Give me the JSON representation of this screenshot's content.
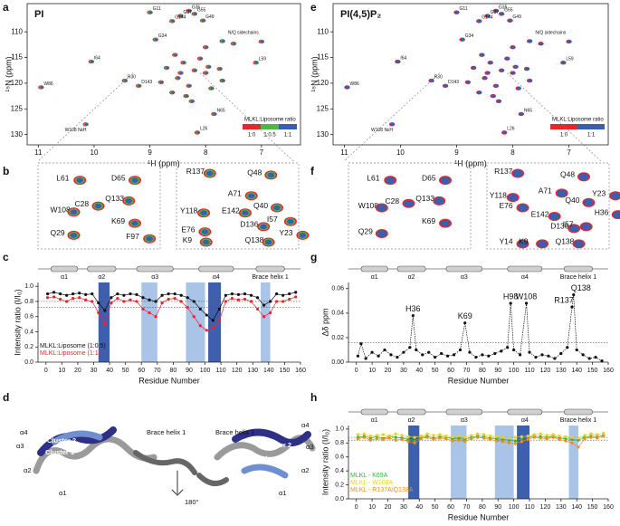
{
  "panel_labels": [
    "a",
    "b",
    "c",
    "d",
    "e",
    "f",
    "g",
    "h"
  ],
  "chart_data": [
    {
      "type": "spectrum",
      "title": "PI",
      "xlabel": "¹H (ppm)",
      "ylabel": "¹⁵N (ppm)",
      "xlim": [
        11.2,
        6.3
      ],
      "ylim": [
        132,
        104.5
      ],
      "xticks": [
        11,
        10,
        9,
        8,
        7
      ],
      "yticks": [
        110,
        115,
        120,
        125,
        130
      ],
      "x": [
        9.0,
        8.3,
        8.45,
        8.6,
        8.05,
        8.2,
        8.9,
        10.05,
        10.95,
        9.45,
        9.2,
        8.15,
        7.85,
        7.1,
        10.15,
        8.4,
        8.2,
        8.0,
        8.5,
        8.3,
        7.9,
        8.7,
        8.1,
        8.6,
        7.7,
        8.35,
        8.0,
        7.7,
        7.0,
        7.5,
        8.8,
        7.95,
        8.55,
        8.25,
        7.75,
        8.45
      ],
      "values": [
        106.2,
        105.9,
        106.9,
        107.9,
        107.8,
        106.5,
        111.5,
        115.8,
        120.8,
        119.5,
        120.5,
        129.6,
        126.0,
        116.0,
        128.0,
        116,
        117.5,
        118,
        119,
        120.5,
        121,
        117,
        115.2,
        121.8,
        119.5,
        122.5,
        113,
        111.8,
        111.9,
        112.3,
        119.8,
        116.8,
        114.5,
        123.5,
        117.2,
        118
      ],
      "value_labels": [
        "G11",
        "G35",
        "G37",
        "G144",
        "G49",
        "G55",
        "G34",
        "I64",
        "W86",
        "R30",
        "D143",
        "L26",
        "N65",
        "L59",
        null,
        null,
        null,
        null,
        null,
        null,
        null,
        null,
        null,
        null,
        null,
        null,
        null,
        null,
        null,
        null,
        null,
        null,
        null,
        null,
        null,
        null
      ],
      "annotations": [
        "W108 NεH",
        "N/Q sidechains"
      ],
      "legend": {
        "title": "MLKL:Liposome ratio",
        "labels": [
          "1:0",
          "1:0.5",
          "1:1"
        ],
        "colors": [
          "#e8262a",
          "#4db848",
          "#3a5fb0"
        ]
      }
    },
    {
      "type": "spectrum",
      "title": "PI(4,5)P₂",
      "xlabel": "¹H (ppm)",
      "ylabel": "¹⁵N (ppm)",
      "xlim": [
        11.2,
        6.3
      ],
      "ylim": [
        132,
        104.5
      ],
      "xticks": [
        11,
        10,
        9,
        8,
        7
      ],
      "yticks": [
        110,
        115,
        120,
        125,
        130
      ],
      "x": [
        9.0,
        8.3,
        8.45,
        8.6,
        8.05,
        8.2,
        8.9,
        10.05,
        10.95,
        9.45,
        9.2,
        8.15,
        7.85,
        7.1,
        10.15,
        8.4,
        8.2,
        8.0,
        8.5,
        8.3,
        7.9,
        8.7,
        8.1,
        8.6,
        7.7,
        8.35,
        8.0,
        7.7,
        7.0,
        7.5,
        8.8,
        7.95,
        8.55,
        8.25,
        7.75,
        8.45
      ],
      "values": [
        106.2,
        105.9,
        106.9,
        107.9,
        107.8,
        106.5,
        111.5,
        115.8,
        120.8,
        119.5,
        120.5,
        129.6,
        126.0,
        116.0,
        128.0,
        116,
        117.5,
        118,
        119,
        120.5,
        121,
        117,
        115.2,
        121.8,
        119.5,
        122.5,
        113,
        111.8,
        111.9,
        112.3,
        119.8,
        116.8,
        114.5,
        123.5,
        117.2,
        118
      ],
      "value_labels": [
        "G11",
        "G35",
        "G37",
        "G144",
        "G49",
        "G55",
        "G34",
        "I64",
        "W86",
        "R30",
        "D143",
        "L26",
        "N65",
        "L59",
        null,
        null,
        null,
        null,
        null,
        null,
        null,
        null,
        null,
        null,
        null,
        null,
        null,
        null,
        null,
        null,
        null,
        null,
        null,
        null,
        null,
        null
      ],
      "annotations": [
        "W108 NεH",
        "N/Q sidechains"
      ],
      "legend": {
        "title": "MLKL:Liposome ratio",
        "labels": [
          "1:0",
          "1:1"
        ],
        "colors": [
          "#e8262a",
          "#3a5fb0"
        ]
      }
    },
    {
      "type": "line",
      "xlabel": "Residue Number",
      "ylabel": "Intensity ratio (I/I₀)",
      "xlim": [
        -5,
        160
      ],
      "ylim": [
        0,
        1.05
      ],
      "xticks": [
        0,
        10,
        20,
        30,
        40,
        50,
        60,
        70,
        80,
        90,
        100,
        110,
        120,
        130,
        140,
        150,
        160
      ],
      "yticks": [
        {
          "value": 0,
          "label": "0.0"
        },
        0.2,
        0.4,
        0.6,
        0.8,
        {
          "value": 1,
          "label": "1.0"
        }
      ],
      "helices": [
        {
          "label": "α1",
          "range": [
            3,
            20
          ]
        },
        {
          "label": "α2",
          "range": [
            26,
            44
          ]
        },
        {
          "label": "α3",
          "range": [
            57,
            80
          ]
        },
        {
          "label": "α4",
          "range": [
            96,
            118
          ]
        },
        {
          "label": "Brace helix 1",
          "range": [
            132,
            150
          ]
        }
      ],
      "regions": [
        {
          "range": [
            33,
            40
          ],
          "color": "#3e5fad"
        },
        {
          "range": [
            60,
            70
          ],
          "color": "#a9c4e6"
        },
        {
          "range": [
            88,
            100
          ],
          "color": "#a9c4e6"
        },
        {
          "range": [
            102,
            110
          ],
          "color": "#3e5fad"
        },
        {
          "range": [
            135,
            141
          ],
          "color": "#a9c4e6"
        }
      ],
      "thresholds": [
        0.8,
        0.72
      ],
      "legend": "lower left",
      "x": [
        1,
        5,
        9,
        13,
        17,
        21,
        25,
        29,
        33,
        37,
        41,
        45,
        49,
        53,
        57,
        61,
        65,
        69,
        73,
        77,
        81,
        85,
        89,
        93,
        97,
        101,
        105,
        109,
        113,
        117,
        121,
        125,
        129,
        133,
        137,
        141,
        145,
        149,
        153,
        157
      ],
      "series": [
        {
          "name": "MLKL:Liposome (1:0.5)",
          "color": "#111111",
          "values": [
            0.9,
            0.92,
            0.9,
            0.88,
            0.9,
            0.91,
            0.89,
            0.9,
            0.78,
            0.68,
            0.85,
            0.9,
            0.88,
            0.9,
            0.89,
            0.85,
            0.82,
            0.8,
            0.88,
            0.9,
            0.9,
            0.88,
            0.85,
            0.8,
            0.7,
            0.62,
            0.55,
            0.7,
            0.88,
            0.9,
            0.89,
            0.9,
            0.88,
            0.85,
            0.75,
            0.8,
            0.9,
            0.88,
            0.9,
            0.92
          ]
        },
        {
          "name": "MLKL:Liposome (1:1)",
          "color": "#e8262a",
          "values": [
            0.85,
            0.86,
            0.83,
            0.8,
            0.84,
            0.85,
            0.82,
            0.8,
            0.65,
            0.5,
            0.78,
            0.84,
            0.8,
            0.82,
            0.8,
            0.7,
            0.65,
            0.6,
            0.78,
            0.83,
            0.84,
            0.8,
            0.72,
            0.6,
            0.48,
            0.42,
            0.45,
            0.55,
            0.8,
            0.84,
            0.82,
            0.83,
            0.8,
            0.7,
            0.6,
            0.65,
            0.8,
            0.8,
            0.83,
            0.86
          ]
        }
      ]
    },
    {
      "type": "line",
      "xlabel": "Residue Number",
      "ylabel": "Δδ ppm",
      "xlim": [
        -5,
        160
      ],
      "ylim": [
        0,
        0.065
      ],
      "xticks": [
        0,
        10,
        20,
        30,
        40,
        50,
        60,
        70,
        80,
        90,
        100,
        110,
        120,
        130,
        140,
        150,
        160
      ],
      "yticks": [
        {
          "value": 0,
          "label": "0.00"
        },
        0.02,
        0.04,
        0.06
      ],
      "helices": [
        {
          "label": "α1",
          "range": [
            3,
            20
          ]
        },
        {
          "label": "α2",
          "range": [
            26,
            44
          ]
        },
        {
          "label": "α3",
          "range": [
            57,
            80
          ]
        },
        {
          "label": "α4",
          "range": [
            96,
            118
          ]
        },
        {
          "label": "Brace helix 1",
          "range": [
            132,
            150
          ]
        }
      ],
      "thresholds": [
        0.016
      ],
      "x": [
        1,
        3,
        6,
        10,
        14,
        18,
        22,
        26,
        30,
        34,
        36,
        38,
        42,
        46,
        50,
        54,
        58,
        62,
        66,
        69,
        72,
        76,
        80,
        84,
        88,
        92,
        96,
        98,
        100,
        104,
        108,
        110,
        114,
        118,
        122,
        126,
        130,
        134,
        137,
        138,
        140,
        144,
        148,
        152,
        156
      ],
      "series": [
        {
          "name": "Δδ",
          "color": "#111111",
          "values": [
            0.005,
            0.015,
            0.003,
            0.008,
            0.005,
            0.01,
            0.006,
            0.004,
            0.008,
            0.012,
            0.038,
            0.01,
            0.006,
            0.008,
            0.004,
            0.007,
            0.005,
            0.006,
            0.01,
            0.032,
            0.008,
            0.004,
            0.006,
            0.005,
            0.007,
            0.009,
            0.012,
            0.048,
            0.01,
            0.006,
            0.048,
            0.008,
            0.004,
            0.006,
            0.005,
            0.003,
            0.007,
            0.012,
            0.045,
            0.055,
            0.01,
            0.006,
            0.003,
            0.004,
            0.001
          ],
          "value_labels": [
            null,
            null,
            null,
            null,
            null,
            null,
            null,
            null,
            null,
            null,
            "H36",
            null,
            null,
            null,
            null,
            null,
            null,
            null,
            null,
            "K69",
            null,
            null,
            null,
            null,
            null,
            null,
            null,
            "H98",
            null,
            null,
            "W108",
            null,
            null,
            null,
            null,
            null,
            null,
            null,
            "R137",
            "Q138",
            null,
            null,
            null,
            null,
            null
          ]
        }
      ]
    },
    {
      "type": "line",
      "xlabel": "Residue Number",
      "ylabel": "Intensity ratio (I/I₀)",
      "xlim": [
        -5,
        160
      ],
      "ylim": [
        0,
        1.05
      ],
      "xticks": [
        0,
        10,
        20,
        30,
        40,
        50,
        60,
        70,
        80,
        90,
        100,
        110,
        120,
        130,
        140,
        150,
        160
      ],
      "yticks": [
        {
          "value": 0,
          "label": "0.0"
        },
        0.2,
        0.4,
        0.6,
        0.8,
        {
          "value": 1,
          "label": "1.0"
        }
      ],
      "helices": [
        {
          "label": "α1",
          "range": [
            3,
            20
          ]
        },
        {
          "label": "α2",
          "range": [
            26,
            44
          ]
        },
        {
          "label": "α3",
          "range": [
            57,
            80
          ]
        },
        {
          "label": "α4",
          "range": [
            96,
            118
          ]
        },
        {
          "label": "Brace helix 1",
          "range": [
            132,
            150
          ]
        }
      ],
      "regions": [
        {
          "range": [
            33,
            40
          ],
          "color": "#3e5fad"
        },
        {
          "range": [
            60,
            70
          ],
          "color": "#a9c4e6"
        },
        {
          "range": [
            88,
            100
          ],
          "color": "#a9c4e6"
        },
        {
          "range": [
            102,
            110
          ],
          "color": "#3e5fad"
        },
        {
          "range": [
            135,
            141
          ],
          "color": "#a9c4e6"
        }
      ],
      "thresholds": [
        0.88,
        0.84
      ],
      "legend": "lower left",
      "x": [
        1,
        5,
        9,
        13,
        17,
        21,
        25,
        29,
        33,
        37,
        41,
        45,
        49,
        53,
        57,
        61,
        65,
        69,
        73,
        77,
        81,
        85,
        89,
        93,
        97,
        101,
        105,
        109,
        113,
        117,
        121,
        125,
        129,
        133,
        137,
        141,
        145,
        149,
        153,
        157
      ],
      "series": [
        {
          "name": "MLKL - K69A",
          "color": "#3fae3a",
          "values": [
            0.88,
            0.9,
            0.87,
            0.89,
            0.86,
            0.9,
            0.88,
            0.87,
            0.85,
            0.83,
            0.88,
            0.9,
            0.87,
            0.89,
            0.88,
            0.86,
            0.87,
            0.85,
            0.88,
            0.9,
            0.89,
            0.87,
            0.86,
            0.85,
            0.84,
            0.83,
            0.86,
            0.88,
            0.9,
            0.89,
            0.88,
            0.9,
            0.87,
            0.86,
            0.85,
            0.84,
            0.88,
            0.9,
            0.89,
            0.91
          ]
        },
        {
          "name": "MLKL - W108A",
          "color": "#e6d21e",
          "values": [
            0.92,
            0.93,
            0.9,
            0.91,
            0.92,
            0.9,
            0.93,
            0.91,
            0.89,
            0.88,
            0.9,
            0.93,
            0.91,
            0.92,
            0.9,
            0.89,
            0.9,
            0.88,
            0.91,
            0.93,
            0.92,
            0.9,
            0.89,
            0.88,
            0.87,
            0.88,
            0.89,
            0.9,
            0.92,
            0.93,
            0.91,
            0.92,
            0.9,
            0.89,
            0.88,
            0.87,
            0.91,
            0.93,
            0.92,
            0.94
          ]
        },
        {
          "name": "MLKL - R137A/Q138A",
          "color": "#f08c1e",
          "values": [
            0.86,
            0.88,
            0.84,
            0.86,
            0.85,
            0.87,
            0.84,
            0.85,
            0.82,
            0.8,
            0.86,
            0.88,
            0.85,
            0.87,
            0.86,
            0.83,
            0.84,
            0.82,
            0.86,
            0.88,
            0.87,
            0.85,
            0.83,
            0.82,
            0.8,
            0.79,
            0.82,
            0.85,
            0.88,
            0.87,
            0.86,
            0.88,
            0.85,
            0.83,
            0.8,
            0.74,
            0.86,
            0.88,
            0.87,
            0.9
          ]
        }
      ]
    }
  ],
  "zoom_b": [
    [
      "L61",
      "D65",
      "Q133",
      "W108",
      "C28",
      "Q29",
      "K69",
      "F97"
    ],
    [
      "R137",
      "Q48",
      "A71",
      "Q40",
      "I57",
      "Y118",
      "E142",
      "D136",
      "E76",
      "K9",
      "Q138",
      "Y23"
    ]
  ],
  "zoom_f": [
    [
      "L61",
      "D65",
      "Q133",
      "W108",
      "C28",
      "Q29",
      "K69"
    ],
    [
      "R137",
      "Q48",
      "Y118",
      "A71",
      "Q40",
      "Y23",
      "E76",
      "E142",
      "D136",
      "H36",
      "I57",
      "Y14",
      "K9",
      "Q138"
    ]
  ],
  "structure_d": [
    "α4",
    "α3",
    "Cluster 1",
    "Cluster 2",
    "α2",
    "α1",
    "Brace helix 1",
    "Brace helix 1",
    "α4",
    "α3",
    "Cluster 2",
    "Cluster 1",
    "α2",
    "α1",
    "180°"
  ]
}
